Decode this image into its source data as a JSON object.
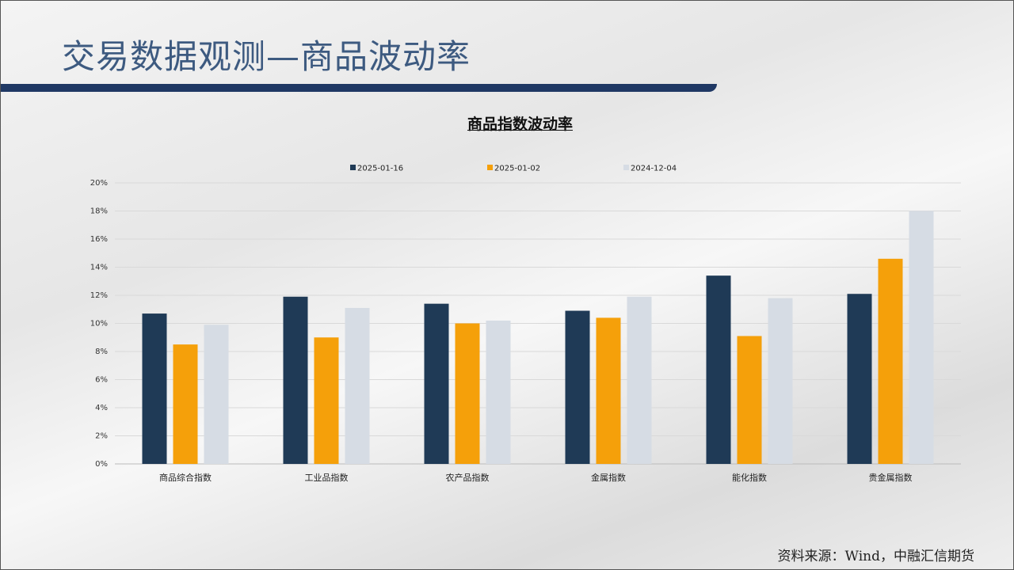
{
  "header": {
    "title": "交易数据观测—商品波动率"
  },
  "footer": {
    "source": "资料来源：Wind，中融汇信期货"
  },
  "chart_data": {
    "type": "bar",
    "title": "商品指数波动率",
    "categories": [
      "商品综合指数",
      "工业品指数",
      "农产品指数",
      "金属指数",
      "能化指数",
      "贵金属指数"
    ],
    "series": [
      {
        "name": "2025-01-16",
        "color": "#1f3a56",
        "values": [
          10.7,
          11.9,
          11.4,
          10.9,
          13.4,
          12.1
        ]
      },
      {
        "name": "2025-01-02",
        "color": "#f5a00a",
        "values": [
          8.5,
          9.0,
          10.0,
          10.4,
          9.1,
          14.6
        ]
      },
      {
        "name": "2024-12-04",
        "color": "#d6dce4",
        "values": [
          9.9,
          11.1,
          10.2,
          11.9,
          11.8,
          18.0
        ]
      }
    ],
    "ylim": [
      0,
      20
    ],
    "yticks": [
      "0%",
      "2%",
      "4%",
      "6%",
      "8%",
      "10%",
      "12%",
      "14%",
      "16%",
      "18%",
      "20%"
    ],
    "grid": true,
    "legend": "top",
    "xlabel": "",
    "ylabel": ""
  }
}
